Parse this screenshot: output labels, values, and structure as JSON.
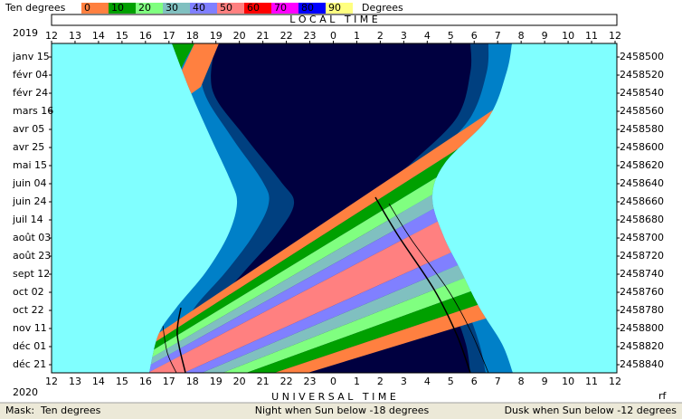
{
  "legend": {
    "title": "Ten degrees",
    "scale": [
      {
        "value": 0,
        "color": "#ff8040"
      },
      {
        "value": 10,
        "color": "#00a000"
      },
      {
        "value": 20,
        "color": "#80ff80"
      },
      {
        "value": 30,
        "color": "#80c0c0"
      },
      {
        "value": 40,
        "color": "#8080ff"
      },
      {
        "value": 50,
        "color": "#ff8080"
      },
      {
        "value": 60,
        "color": "#ff0000"
      },
      {
        "value": 70,
        "color": "#ff00ff"
      },
      {
        "value": 80,
        "color": "#0000ff"
      },
      {
        "value": 90,
        "color": "#ffff80"
      }
    ],
    "unit": "Degrees"
  },
  "top": {
    "axis_title": "L O C A L   T I M E",
    "year": "2019",
    "hours": [
      12,
      13,
      14,
      15,
      16,
      17,
      18,
      19,
      20,
      21,
      22,
      23,
      0,
      1,
      2,
      3,
      4,
      5,
      6,
      7,
      8,
      9,
      10,
      11,
      12
    ]
  },
  "left_dates": [
    "janv 15",
    "févr 04",
    "févr 24",
    "mars 16",
    "avr 05",
    "avr 25",
    "mai 15",
    "juin 04",
    "juin 24",
    "juil 14",
    "août 03",
    "août 23",
    "sept 12",
    "oct 02",
    "oct 22",
    "nov 11",
    "déc 01",
    "déc 21"
  ],
  "right_days": [
    2458500,
    2458520,
    2458540,
    2458560,
    2458580,
    2458600,
    2458620,
    2458640,
    2458660,
    2458680,
    2458700,
    2458720,
    2458740,
    2458760,
    2458780,
    2458800,
    2458820,
    2458840
  ],
  "bottom": {
    "year": "2020",
    "axis_title": "U N I V E R S A L   T I M E",
    "corner": "rf",
    "hours": [
      12,
      13,
      14,
      15,
      16,
      17,
      18,
      19,
      20,
      21,
      22,
      23,
      0,
      1,
      2,
      3,
      4,
      5,
      6,
      7,
      8,
      9,
      10,
      11,
      12
    ]
  },
  "status": {
    "mask": "Mask:  Ten degrees",
    "night": "Night when Sun below -18 degrees",
    "dusk": "Dusk when Sun below -12 degrees"
  }
}
